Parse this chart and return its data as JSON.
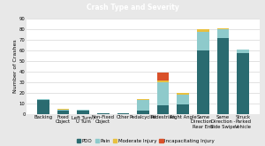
{
  "title": "Crash Type and Severity",
  "categories": [
    "Backing",
    "Fixed\nObject",
    "Left Turn /\nU Turn",
    "Non-Fixed\nObject",
    "Other",
    "Pedalcyclist",
    "Pedestrian",
    "Right Angle",
    "Same\nDirection -\nRear End",
    "Same\nDirection -\nSide Swipe",
    "Struck\nParked\nVehicle"
  ],
  "legend_labels": [
    "PDO",
    "Pain",
    "Moderate Injury",
    "Incapacitating Injury"
  ],
  "colors": [
    "#2a6b70",
    "#8ecacb",
    "#e8c040",
    "#d9512a"
  ],
  "segments": {
    "PDO": [
      13,
      3,
      3,
      1,
      1,
      3,
      8,
      9,
      60,
      72,
      58
    ],
    "Pain": [
      1,
      1,
      1,
      0,
      0,
      10,
      22,
      9,
      18,
      8,
      3
    ],
    "Moderate Injury": [
      0,
      1,
      0,
      0,
      0,
      1,
      2,
      2,
      2,
      1,
      0
    ],
    "Incapacitating Injury": [
      0,
      0,
      0,
      0,
      0,
      0,
      7,
      0,
      0,
      0,
      0
    ]
  },
  "ylim": [
    0,
    90
  ],
  "yticks": [
    0,
    10,
    20,
    30,
    40,
    50,
    60,
    70,
    80,
    90
  ],
  "ylabel": "Number of Crashes",
  "plot_bg": "#ffffff",
  "fig_bg": "#e8e8e8",
  "title_bg": "#1a1a1a",
  "title_color": "#ffffff",
  "title_fontsize": 5.5,
  "axis_fontsize": 4.5,
  "tick_fontsize": 3.8,
  "legend_fontsize": 4.0
}
